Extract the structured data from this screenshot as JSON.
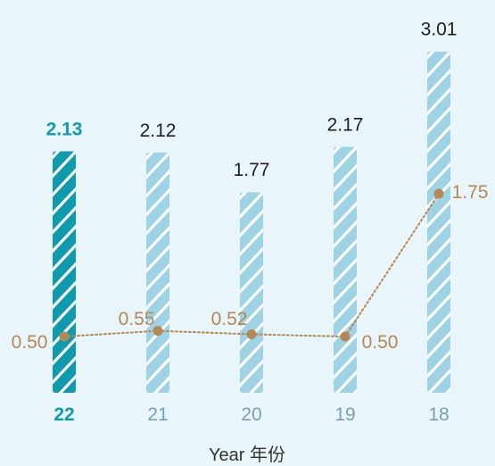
{
  "colors": {
    "background": "#e8f5fb",
    "bar_normal": "#9ed3e6",
    "bar_highlight": "#0f9aad",
    "stripe": "#ffffff",
    "line": "#b58752",
    "label_normal": "#1f1f1f",
    "label_highlight": "#0f9aad",
    "tick_normal": "#7b9fb0"
  },
  "chart_data": {
    "type": "bar",
    "categories": [
      "22",
      "21",
      "20",
      "19",
      "18"
    ],
    "highlight_category": "22",
    "series": [
      {
        "values": [
          2.13,
          2.12,
          1.77,
          2.17,
          3.01
        ],
        "display": [
          "2.13",
          "2.12",
          "1.77",
          "2.17",
          "3.01"
        ],
        "style": "bar"
      },
      {
        "values": [
          0.5,
          0.55,
          0.52,
          0.5,
          1.75
        ],
        "display": [
          "0.50",
          "0.55",
          "0.52",
          "0.50",
          "1.75"
        ],
        "style": "dotted-line"
      }
    ],
    "xlabel": "Year 年份",
    "ylabel": "",
    "ylim": [
      0,
      3.01
    ],
    "grid": false,
    "legend": "none"
  }
}
